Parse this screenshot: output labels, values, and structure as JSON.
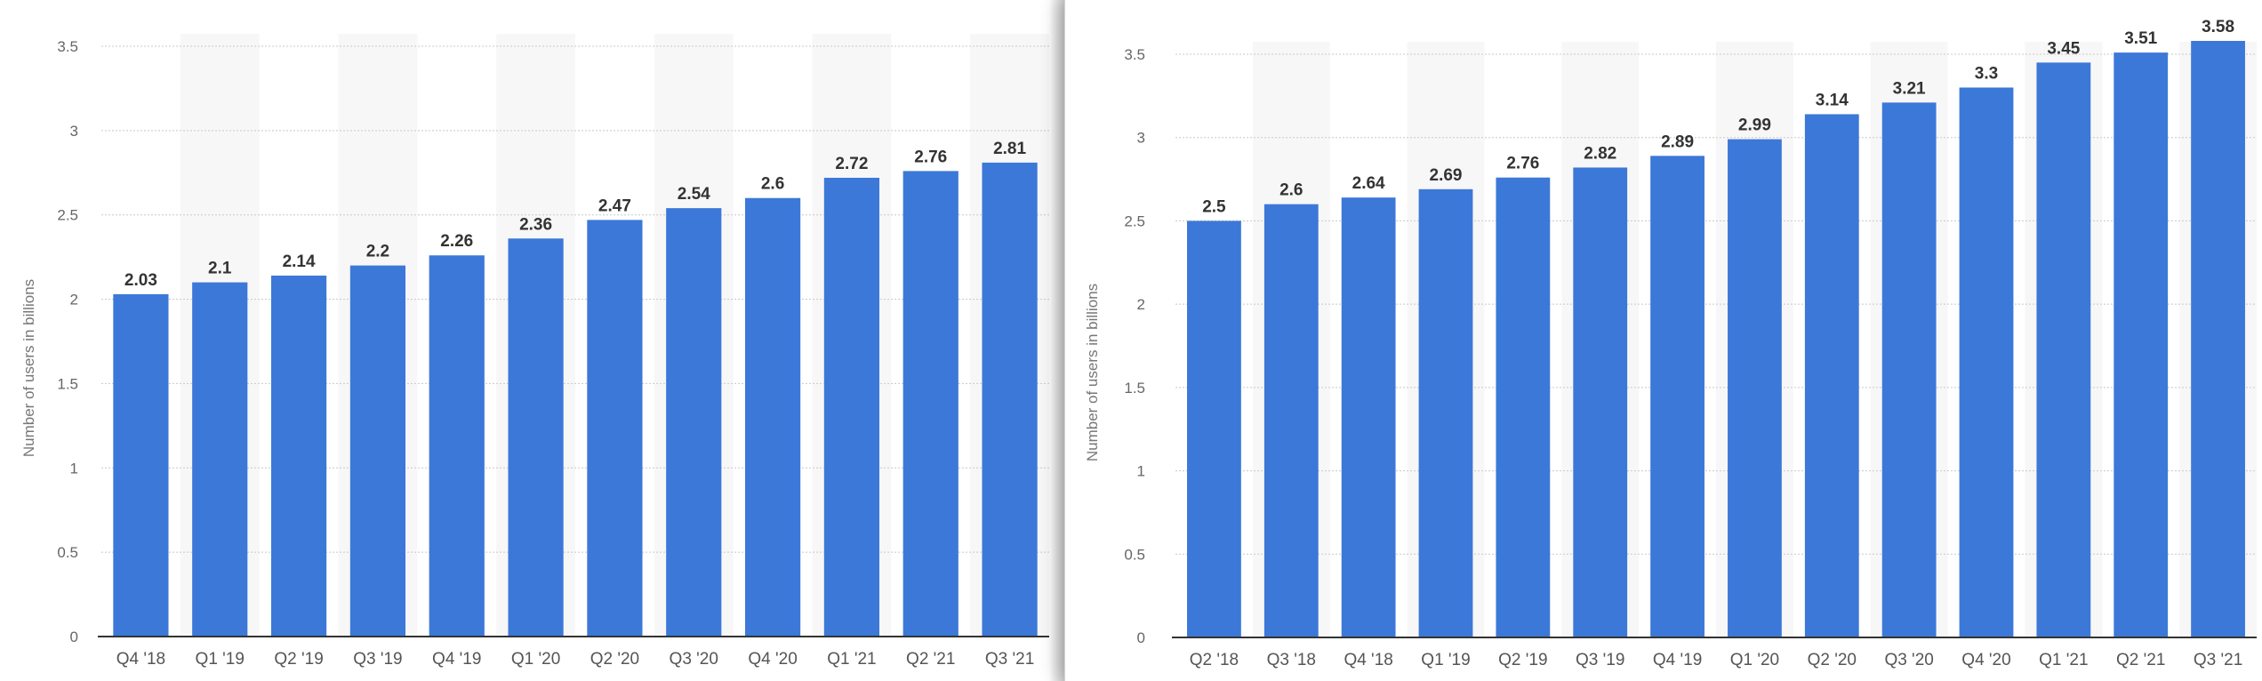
{
  "chart_data": [
    {
      "type": "bar",
      "categories": [
        "Q4 '18",
        "Q1 '19",
        "Q2 '19",
        "Q3 '19",
        "Q4 '19",
        "Q1 '20",
        "Q2 '20",
        "Q3 '20",
        "Q4 '20",
        "Q1 '21",
        "Q2 '21",
        "Q3 '21"
      ],
      "values": [
        2.03,
        2.1,
        2.14,
        2.2,
        2.26,
        2.36,
        2.47,
        2.54,
        2.6,
        2.72,
        2.76,
        2.81
      ],
      "value_labels": [
        "2.03",
        "2.1",
        "2.14",
        "2.2",
        "2.26",
        "2.36",
        "2.47",
        "2.54",
        "2.6",
        "2.72",
        "2.76",
        "2.81"
      ],
      "title": "",
      "xlabel": "",
      "ylabel": "Number of users in billions",
      "ylim": [
        0,
        3.5
      ],
      "yticks": [
        "0",
        "0.5",
        "1",
        "1.5",
        "2",
        "2.5",
        "3",
        "3.5"
      ],
      "grid": true,
      "bar_color": "#3c78d8"
    },
    {
      "type": "bar",
      "categories": [
        "Q2 '18",
        "Q3 '18",
        "Q4 '18",
        "Q1 '19",
        "Q2 '19",
        "Q3 '19",
        "Q4 '19",
        "Q1 '20",
        "Q2 '20",
        "Q3 '20",
        "Q4 '20",
        "Q1 '21",
        "Q2 '21",
        "Q3 '21"
      ],
      "values": [
        2.5,
        2.6,
        2.64,
        2.69,
        2.76,
        2.82,
        2.89,
        2.99,
        3.14,
        3.21,
        3.3,
        3.45,
        3.51,
        3.58
      ],
      "value_labels": [
        "2.5",
        "2.6",
        "2.64",
        "2.69",
        "2.76",
        "2.82",
        "2.89",
        "2.99",
        "3.14",
        "3.21",
        "3.3",
        "3.45",
        "3.51",
        "3.58"
      ],
      "title": "",
      "xlabel": "",
      "ylabel": "Number of users in billions",
      "ylim": [
        0,
        3.5
      ],
      "yticks": [
        "0",
        "0.5",
        "1",
        "1.5",
        "2",
        "2.5",
        "3",
        "3.5"
      ],
      "grid": true,
      "bar_color": "#3c78d8"
    }
  ]
}
